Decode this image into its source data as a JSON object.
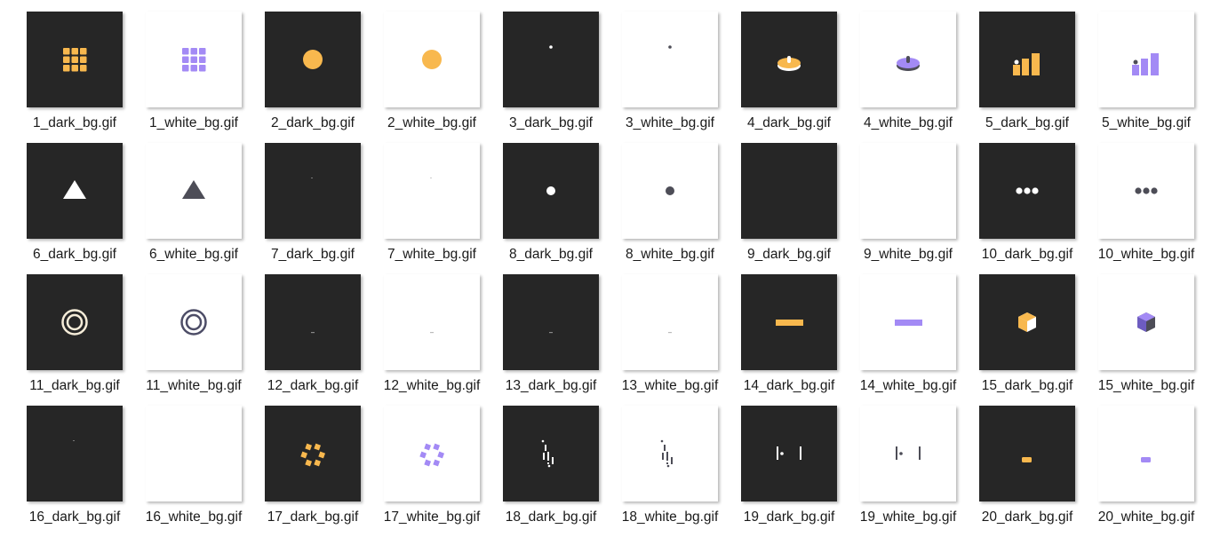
{
  "colors": {
    "dark_bg": "#262626",
    "white_bg": "#ffffff",
    "accent_dark": "#f8b84e",
    "accent_white": "#a38af5",
    "mono_dark": "#ffffff",
    "mono_white": "#4d4d57"
  },
  "files": [
    {
      "name": "1_dark_bg.gif",
      "bg": "dark",
      "icon": "grid-icon"
    },
    {
      "name": "1_white_bg.gif",
      "bg": "white",
      "icon": "grid-icon"
    },
    {
      "name": "2_dark_bg.gif",
      "bg": "dark",
      "icon": "circle-icon"
    },
    {
      "name": "2_white_bg.gif",
      "bg": "white",
      "icon": "circle-orange-icon"
    },
    {
      "name": "3_dark_bg.gif",
      "bg": "dark",
      "icon": "tiny-dot-icon"
    },
    {
      "name": "3_white_bg.gif",
      "bg": "white",
      "icon": "tiny-dot-icon"
    },
    {
      "name": "4_dark_bg.gif",
      "bg": "dark",
      "icon": "disc-icon"
    },
    {
      "name": "4_white_bg.gif",
      "bg": "white",
      "icon": "disc-icon"
    },
    {
      "name": "5_dark_bg.gif",
      "bg": "dark",
      "icon": "bars-icon"
    },
    {
      "name": "5_white_bg.gif",
      "bg": "white",
      "icon": "bars-icon"
    },
    {
      "name": "6_dark_bg.gif",
      "bg": "dark",
      "icon": "triangle-icon"
    },
    {
      "name": "6_white_bg.gif",
      "bg": "white",
      "icon": "triangle-icon"
    },
    {
      "name": "7_dark_bg.gif",
      "bg": "dark",
      "icon": "speck-icon"
    },
    {
      "name": "7_white_bg.gif",
      "bg": "white",
      "icon": "speck-icon"
    },
    {
      "name": "8_dark_bg.gif",
      "bg": "dark",
      "icon": "dot-icon"
    },
    {
      "name": "8_white_bg.gif",
      "bg": "white",
      "icon": "dot-icon"
    },
    {
      "name": "9_dark_bg.gif",
      "bg": "dark",
      "icon": "empty"
    },
    {
      "name": "9_white_bg.gif",
      "bg": "white",
      "icon": "empty"
    },
    {
      "name": "10_dark_bg.gif",
      "bg": "dark",
      "icon": "three-dots-icon"
    },
    {
      "name": "10_white_bg.gif",
      "bg": "white",
      "icon": "three-dots-icon"
    },
    {
      "name": "11_dark_bg.gif",
      "bg": "dark",
      "icon": "rings-icon"
    },
    {
      "name": "11_white_bg.gif",
      "bg": "white",
      "icon": "rings-icon"
    },
    {
      "name": "12_dark_bg.gif",
      "bg": "dark",
      "icon": "dash-icon"
    },
    {
      "name": "12_white_bg.gif",
      "bg": "white",
      "icon": "dash-icon"
    },
    {
      "name": "13_dark_bg.gif",
      "bg": "dark",
      "icon": "dash-icon"
    },
    {
      "name": "13_white_bg.gif",
      "bg": "white",
      "icon": "dash-icon"
    },
    {
      "name": "14_dark_bg.gif",
      "bg": "dark",
      "icon": "bar-icon"
    },
    {
      "name": "14_white_bg.gif",
      "bg": "white",
      "icon": "bar-icon"
    },
    {
      "name": "15_dark_bg.gif",
      "bg": "dark",
      "icon": "cube-icon"
    },
    {
      "name": "15_white_bg.gif",
      "bg": "white",
      "icon": "cube-icon"
    },
    {
      "name": "16_dark_bg.gif",
      "bg": "dark",
      "icon": "speck-icon"
    },
    {
      "name": "16_white_bg.gif",
      "bg": "white",
      "icon": "empty"
    },
    {
      "name": "17_dark_bg.gif",
      "bg": "dark",
      "icon": "square-ring-icon"
    },
    {
      "name": "17_white_bg.gif",
      "bg": "white",
      "icon": "square-ring-icon"
    },
    {
      "name": "18_dark_bg.gif",
      "bg": "dark",
      "icon": "rain-lines-icon"
    },
    {
      "name": "18_white_bg.gif",
      "bg": "white",
      "icon": "rain-lines-icon"
    },
    {
      "name": "19_dark_bg.gif",
      "bg": "dark",
      "icon": "bracket-dot-icon"
    },
    {
      "name": "19_white_bg.gif",
      "bg": "white",
      "icon": "bracket-dot-icon"
    },
    {
      "name": "20_dark_bg.gif",
      "bg": "dark",
      "icon": "pill-icon"
    },
    {
      "name": "20_white_bg.gif",
      "bg": "white",
      "icon": "pill-icon"
    }
  ]
}
